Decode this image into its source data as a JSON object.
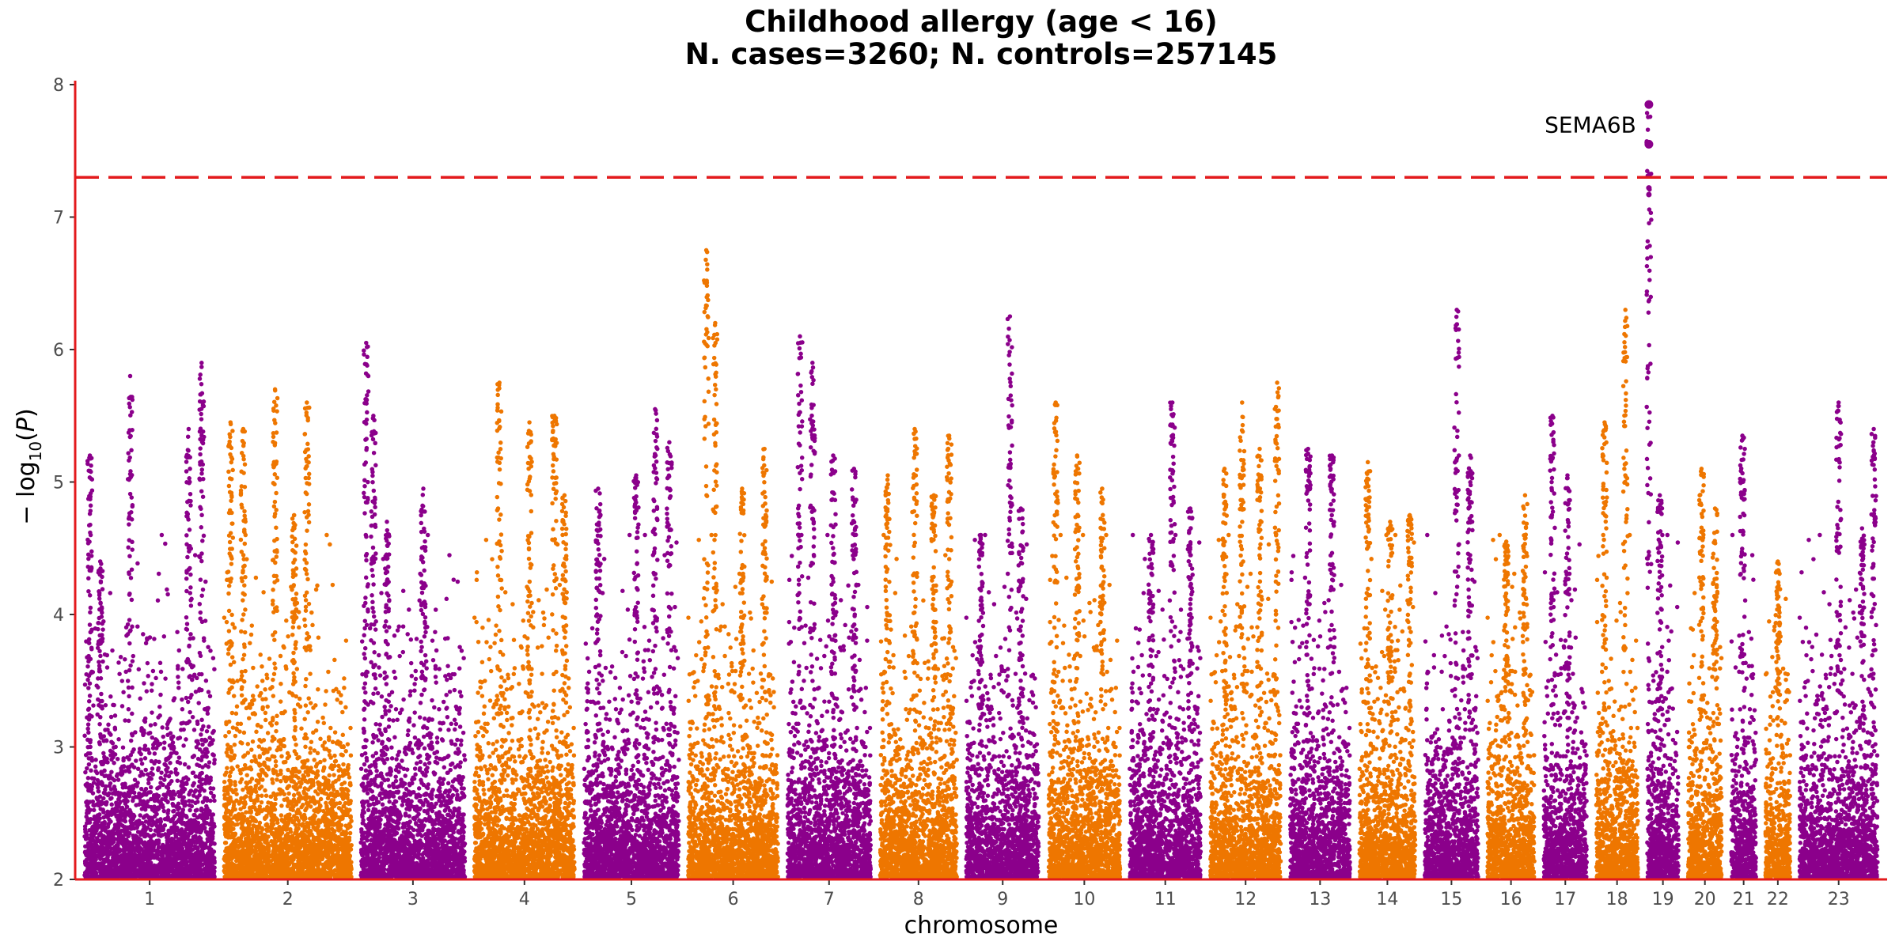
{
  "chart_data": {
    "type": "scatter",
    "title": "Childhood allergy (age < 16)",
    "subtitle": "N. cases=3260; N. controls=257145",
    "xlabel": "chromosome",
    "ylabel": {
      "prefix": "− log",
      "sub": "10",
      "paren_open": "(",
      "var": "P",
      "paren_close": ")"
    },
    "ylim": [
      2,
      8
    ],
    "y_ticks": [
      2,
      3,
      4,
      5,
      6,
      7,
      8
    ],
    "significance_threshold": 7.3,
    "colors": {
      "odd": "#8b008b",
      "even": "#ee7600",
      "threshold": "#e31a1c",
      "axis": "#e31a1c"
    },
    "chromosomes": [
      {
        "label": "1",
        "length": 1.0,
        "peaks": [
          [
            0.04,
            5.2
          ],
          [
            0.12,
            4.4
          ],
          [
            0.35,
            5.8
          ],
          [
            0.8,
            5.4
          ],
          [
            0.9,
            5.9
          ]
        ]
      },
      {
        "label": "2",
        "length": 0.98,
        "peaks": [
          [
            0.05,
            5.45
          ],
          [
            0.15,
            5.4
          ],
          [
            0.4,
            5.7
          ],
          [
            0.55,
            4.75
          ],
          [
            0.65,
            5.6
          ]
        ]
      },
      {
        "label": "3",
        "length": 0.8,
        "peaks": [
          [
            0.05,
            6.05
          ],
          [
            0.12,
            5.5
          ],
          [
            0.25,
            4.7
          ],
          [
            0.6,
            4.95
          ]
        ]
      },
      {
        "label": "4",
        "length": 0.77,
        "peaks": [
          [
            0.25,
            5.75
          ],
          [
            0.55,
            5.45
          ],
          [
            0.8,
            5.5
          ],
          [
            0.9,
            4.9
          ]
        ]
      },
      {
        "label": "5",
        "length": 0.73,
        "peaks": [
          [
            0.15,
            4.95
          ],
          [
            0.55,
            5.05
          ],
          [
            0.75,
            5.55
          ],
          [
            0.9,
            5.3
          ]
        ]
      },
      {
        "label": "6",
        "length": 0.69,
        "peaks": [
          [
            0.2,
            6.75
          ],
          [
            0.3,
            6.2
          ],
          [
            0.6,
            4.95
          ],
          [
            0.85,
            5.25
          ]
        ]
      },
      {
        "label": "7",
        "length": 0.64,
        "peaks": [
          [
            0.15,
            6.1
          ],
          [
            0.3,
            5.9
          ],
          [
            0.55,
            5.2
          ],
          [
            0.8,
            5.1
          ]
        ]
      },
      {
        "label": "8",
        "length": 0.59,
        "peaks": [
          [
            0.1,
            5.05
          ],
          [
            0.45,
            5.4
          ],
          [
            0.7,
            4.9
          ],
          [
            0.9,
            5.35
          ]
        ]
      },
      {
        "label": "9",
        "length": 0.56,
        "peaks": [
          [
            0.2,
            4.6
          ],
          [
            0.6,
            6.25
          ],
          [
            0.75,
            4.8
          ]
        ]
      },
      {
        "label": "10",
        "length": 0.55,
        "peaks": [
          [
            0.1,
            5.6
          ],
          [
            0.4,
            5.2
          ],
          [
            0.75,
            4.95
          ]
        ]
      },
      {
        "label": "11",
        "length": 0.55,
        "peaks": [
          [
            0.3,
            4.6
          ],
          [
            0.6,
            5.6
          ],
          [
            0.85,
            4.8
          ]
        ]
      },
      {
        "label": "12",
        "length": 0.54,
        "peaks": [
          [
            0.2,
            5.1
          ],
          [
            0.45,
            5.6
          ],
          [
            0.7,
            5.25
          ],
          [
            0.95,
            5.75
          ]
        ]
      },
      {
        "label": "13",
        "length": 0.46,
        "peaks": [
          [
            0.3,
            5.25
          ],
          [
            0.7,
            5.2
          ]
        ]
      },
      {
        "label": "14",
        "length": 0.43,
        "peaks": [
          [
            0.15,
            5.15
          ],
          [
            0.55,
            4.7
          ],
          [
            0.9,
            4.75
          ]
        ]
      },
      {
        "label": "15",
        "length": 0.41,
        "peaks": [
          [
            0.6,
            6.3
          ],
          [
            0.85,
            5.2
          ]
        ]
      },
      {
        "label": "16",
        "length": 0.36,
        "peaks": [
          [
            0.4,
            4.55
          ],
          [
            0.8,
            4.9
          ]
        ]
      },
      {
        "label": "17",
        "length": 0.33,
        "peaks": [
          [
            0.2,
            5.5
          ],
          [
            0.55,
            5.05
          ]
        ]
      },
      {
        "label": "18",
        "length": 0.32,
        "peaks": [
          [
            0.2,
            5.45
          ],
          [
            0.7,
            6.3
          ]
        ]
      },
      {
        "label": "19",
        "length": 0.24,
        "peaks": [
          [
            0.05,
            7.85
          ],
          [
            0.4,
            4.9
          ]
        ]
      },
      {
        "label": "20",
        "length": 0.26,
        "peaks": [
          [
            0.4,
            5.1
          ],
          [
            0.8,
            4.8
          ]
        ]
      },
      {
        "label": "21",
        "length": 0.19,
        "peaks": [
          [
            0.45,
            5.35
          ]
        ]
      },
      {
        "label": "22",
        "length": 0.19,
        "peaks": [
          [
            0.5,
            4.4
          ]
        ]
      },
      {
        "label": "23",
        "length": 0.6,
        "peaks": [
          [
            0.5,
            5.6
          ],
          [
            0.8,
            4.65
          ],
          [
            0.95,
            5.4
          ]
        ]
      }
    ],
    "annotations": [
      {
        "label": "SEMA6B",
        "chromosome": "19",
        "y": 7.7
      }
    ],
    "top_hits": [
      {
        "chromosome": "19",
        "y": 7.85
      },
      {
        "chromosome": "19",
        "y": 7.55
      },
      {
        "chromosome": "19",
        "y": 7.22
      },
      {
        "chromosome": "19",
        "y": 7.17
      }
    ]
  }
}
